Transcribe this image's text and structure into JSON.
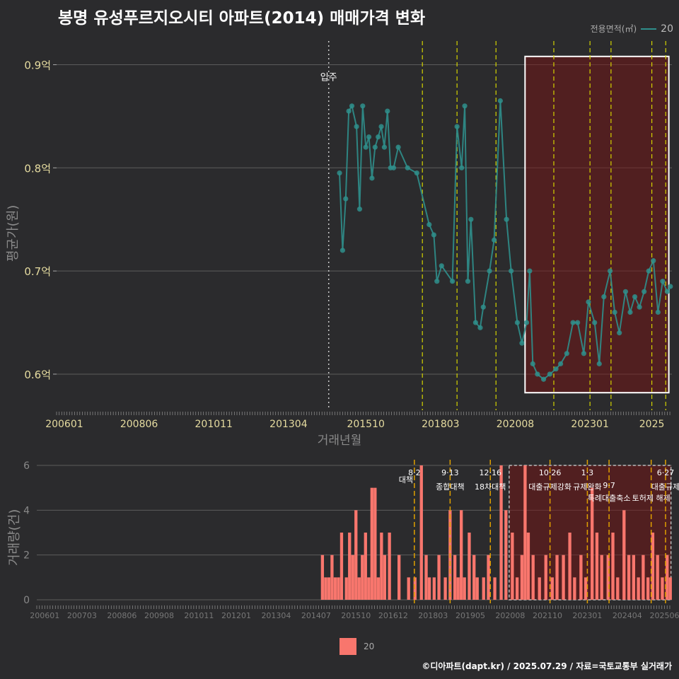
{
  "title": "봉명 유성푸르지오시티 아파트(2014) 매매가격 변화",
  "legend_top": {
    "title": "전용면적(㎡)",
    "label": "20"
  },
  "legend_bottom": {
    "label": "20"
  },
  "credit": "©디아파트(dapt.kr) / 2025.07.29 / 자료=국토교통부 실거래가",
  "chart_data": [
    {
      "type": "line",
      "title": "봉명 유성푸르지오시티 아파트(2014) 매매가격 변화",
      "xlabel": "거래년월",
      "ylabel": "평균가(원)",
      "x_ticks": [
        "200601",
        "200806",
        "201011",
        "201304",
        "201510",
        "201803",
        "202008",
        "202301",
        "2025"
      ],
      "y_ticks": [
        {
          "value": 0.6,
          "label": "0.6억"
        },
        {
          "value": 0.7,
          "label": "0.7억"
        },
        {
          "value": 0.8,
          "label": "0.8억"
        },
        {
          "value": 0.9,
          "label": "0.9억"
        }
      ],
      "ylim": [
        0.565,
        0.925
      ],
      "xlim": [
        2005.75,
        2025.65
      ],
      "move_in": {
        "x": 2014.55,
        "label": "입주"
      },
      "highlight_range": [
        2020.9,
        2025.55
      ],
      "policy_lines": [
        2017.58,
        2018.7,
        2019.96,
        2021.83,
        2023.0,
        2023.68,
        2025.0,
        2025.45
      ],
      "series": [
        {
          "name": "20",
          "color": "#2f8f8c",
          "x": [
            2014.9,
            2015.0,
            2015.1,
            2015.2,
            2015.3,
            2015.45,
            2015.55,
            2015.65,
            2015.75,
            2015.85,
            2015.95,
            2016.05,
            2016.15,
            2016.25,
            2016.35,
            2016.45,
            2016.55,
            2016.65,
            2016.8,
            2017.1,
            2017.4,
            2017.8,
            2017.95,
            2018.05,
            2018.2,
            2018.55,
            2018.7,
            2018.85,
            2018.95,
            2019.05,
            2019.15,
            2019.3,
            2019.45,
            2019.55,
            2019.75,
            2019.9,
            2020.1,
            2020.3,
            2020.45,
            2020.65,
            2020.8,
            2020.95,
            2021.05,
            2021.15,
            2021.3,
            2021.5,
            2021.7,
            2021.9,
            2022.05,
            2022.25,
            2022.45,
            2022.6,
            2022.8,
            2022.95,
            2023.15,
            2023.3,
            2023.45,
            2023.65,
            2023.8,
            2023.95,
            2024.15,
            2024.3,
            2024.45,
            2024.6,
            2024.75,
            2024.9,
            2025.05,
            2025.2,
            2025.35,
            2025.5,
            2025.6
          ],
          "values": [
            0.795,
            0.72,
            0.77,
            0.855,
            0.86,
            0.84,
            0.76,
            0.86,
            0.82,
            0.83,
            0.79,
            0.82,
            0.83,
            0.84,
            0.82,
            0.855,
            0.8,
            0.8,
            0.82,
            0.8,
            0.795,
            0.745,
            0.735,
            0.69,
            0.705,
            0.69,
            0.84,
            0.8,
            0.86,
            0.69,
            0.75,
            0.65,
            0.645,
            0.665,
            0.7,
            0.73,
            0.865,
            0.75,
            0.7,
            0.65,
            0.63,
            0.65,
            0.7,
            0.61,
            0.6,
            0.595,
            0.6,
            0.605,
            0.61,
            0.62,
            0.65,
            0.65,
            0.62,
            0.67,
            0.65,
            0.61,
            0.675,
            0.7,
            0.66,
            0.64,
            0.68,
            0.66,
            0.675,
            0.665,
            0.68,
            0.7,
            0.71,
            0.66,
            0.69,
            0.68,
            0.685
          ]
        }
      ]
    },
    {
      "type": "bar",
      "title": "",
      "xlabel": "",
      "ylabel": "거래량(건)",
      "ylim": [
        0,
        6
      ],
      "y_ticks": [
        0,
        2,
        4,
        6
      ],
      "x_ticks": [
        "200601",
        "200703",
        "200806",
        "200908",
        "201011",
        "201201",
        "201304",
        "201407",
        "201510",
        "201612",
        "201803",
        "201905",
        "202008",
        "202110",
        "202301",
        "202404",
        "202506"
      ],
      "xlim": [
        2005.75,
        2025.65
      ],
      "highlight_range": [
        2020.55,
        2025.62
      ],
      "policy_events": [
        {
          "x": 2017.58,
          "date": "8·2",
          "name": "대책"
        },
        {
          "x": 2018.7,
          "date": "9·13",
          "name": "종합대책"
        },
        {
          "x": 2019.96,
          "date": "12·16",
          "name": "18차대책"
        },
        {
          "x": 2021.83,
          "date": "10·26",
          "name": "대출규제강화"
        },
        {
          "x": 2023.0,
          "date": "1·3",
          "name": "규제완화"
        },
        {
          "x": 2023.68,
          "date": "9·7",
          "name": "특례대출축소"
        },
        {
          "x": 2025.0,
          "date": "",
          "name": "토허제 해제"
        },
        {
          "x": 2025.45,
          "date": "6·27",
          "name": "대출규제"
        }
      ],
      "series": [
        {
          "name": "20",
          "color": "#f8766d",
          "x": [
            2014.7,
            2014.8,
            2014.9,
            2015.0,
            2015.1,
            2015.2,
            2015.3,
            2015.45,
            2015.55,
            2015.65,
            2015.75,
            2015.85,
            2015.95,
            2016.05,
            2016.15,
            2016.25,
            2016.35,
            2016.45,
            2016.55,
            2016.65,
            2016.8,
            2017.1,
            2017.4,
            2017.6,
            2017.8,
            2017.95,
            2018.05,
            2018.2,
            2018.35,
            2018.55,
            2018.7,
            2018.85,
            2018.95,
            2019.05,
            2019.15,
            2019.3,
            2019.45,
            2019.55,
            2019.75,
            2019.9,
            2020.1,
            2020.3,
            2020.45,
            2020.65,
            2020.8,
            2020.95,
            2021.05,
            2021.15,
            2021.3,
            2021.5,
            2021.7,
            2021.9,
            2022.05,
            2022.25,
            2022.45,
            2022.6,
            2022.8,
            2022.95,
            2023.15,
            2023.3,
            2023.45,
            2023.65,
            2023.8,
            2023.95,
            2024.15,
            2024.3,
            2024.45,
            2024.6,
            2024.75,
            2024.9,
            2025.05,
            2025.2,
            2025.35,
            2025.5,
            2025.6
          ],
          "values": [
            2,
            1,
            1,
            2,
            1,
            1,
            3,
            1,
            3,
            2,
            4,
            1,
            2,
            3,
            1,
            5,
            5,
            1,
            3,
            2,
            3,
            2,
            1,
            1,
            6,
            2,
            1,
            1,
            2,
            1,
            4,
            2,
            1,
            4,
            1,
            3,
            2,
            1,
            1,
            2,
            1,
            6,
            4,
            3,
            1,
            2,
            6,
            3,
            2,
            1,
            2,
            1,
            2,
            2,
            3,
            1,
            2,
            1,
            5,
            3,
            2,
            2,
            3,
            1,
            4,
            2,
            2,
            1,
            2,
            1,
            3,
            2,
            1,
            2,
            1
          ]
        }
      ]
    }
  ]
}
